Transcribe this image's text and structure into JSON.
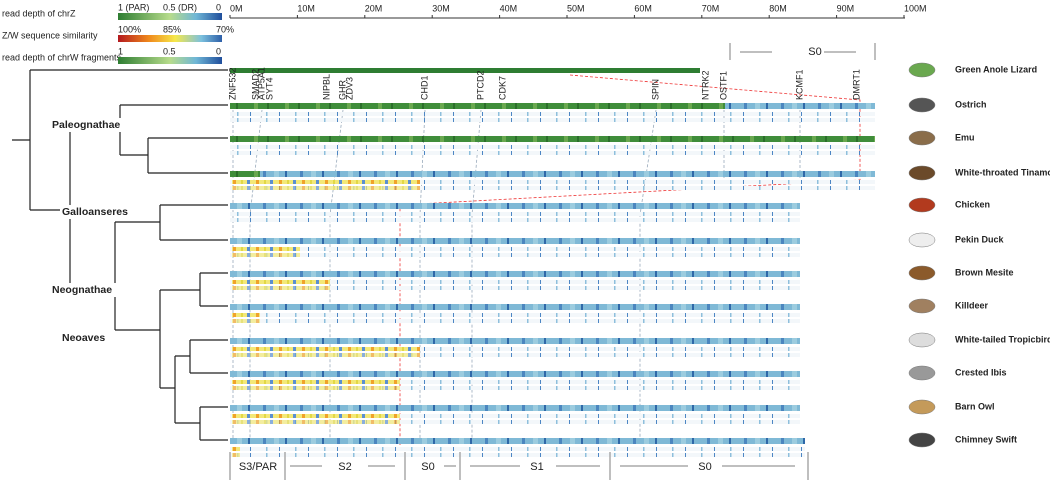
{
  "legend": {
    "chrz": {
      "title": "read depth of chrZ",
      "labels": [
        "1 (PAR)",
        "0.5 (DR)",
        "0"
      ]
    },
    "similarity": {
      "title": "Z/W sequence similarity",
      "labels": [
        "100%",
        "85%",
        "70%"
      ]
    },
    "chrw": {
      "title": "read depth of chrW fragments",
      "labels": [
        "1",
        "0.5",
        "0"
      ]
    }
  },
  "axis": {
    "ticks": [
      "0M",
      "10M",
      "20M",
      "30M",
      "40M",
      "50M",
      "60M",
      "70M",
      "80M",
      "90M",
      "100M"
    ]
  },
  "genes": [
    "ZNF532",
    "SMAD2",
    "ATP5A1",
    "SYT4",
    "NIPBL",
    "GHR",
    "ZDV3",
    "CHD1",
    "PTCD2",
    "CDK7",
    "SPIN",
    "NTRK2",
    "OSTF1",
    "KCMF1",
    "DMRT1"
  ],
  "species": [
    "Green Anole Lizard",
    "Ostrich",
    "Emu",
    "White-throated Tinamou",
    "Chicken",
    "Pekin Duck",
    "Brown Mesite",
    "Killdeer",
    "White-tailed Tropicbird",
    "Crested Ibis",
    "Barn Owl",
    "Chimney Swift"
  ],
  "clades": [
    "Paleognathae",
    "Galloanseres",
    "Neognathae",
    "Neoaves"
  ],
  "strata": {
    "top": "S0",
    "bottom": [
      "S3/PAR",
      "S2",
      "S0",
      "S1",
      "S0"
    ]
  }
}
